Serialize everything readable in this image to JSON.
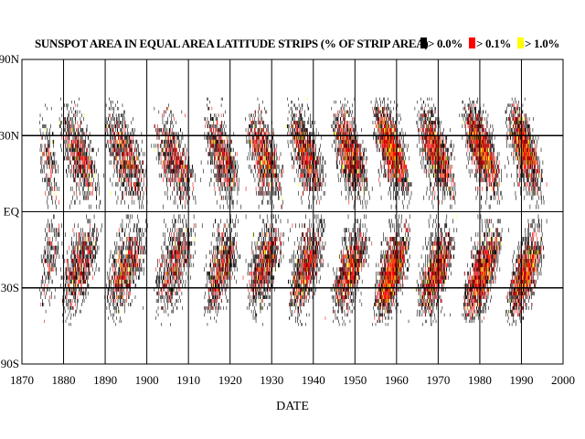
{
  "chart_data": {
    "type": "heatmap",
    "title": "SUNSPOT AREA IN EQUAL AREA LATITUDE STRIPS (% OF STRIP AREA)",
    "xlabel": "DATE",
    "ylabel": "",
    "xlim": [
      1870,
      2000
    ],
    "x_ticks": [
      "1870",
      "1880",
      "1890",
      "1900",
      "1910",
      "1920",
      "1930",
      "1940",
      "1950",
      "1960",
      "1970",
      "1980",
      "1990",
      "2000"
    ],
    "y_ticks": [
      "90N",
      "30N",
      "EQ",
      "30S",
      "90S"
    ],
    "y_tick_values": [
      90,
      30,
      0,
      -30,
      -90
    ],
    "y_scale": "sine of latitude (equal area)",
    "grid": "vertical lines each decade; horizontal lines at 30N, EQ, 30S",
    "legend_position": "top-right",
    "legend": [
      {
        "label": "> 0.0%",
        "color": "#000000"
      },
      {
        "label": "> 0.1%",
        "color": "#ff0000"
      },
      {
        "label": "> 1.0%",
        "color": "#ffff00"
      }
    ],
    "cycles": [
      {
        "start": 1874,
        "end": 1880,
        "max_lat": 28,
        "intensity": 0.35
      },
      {
        "start": 1878.8,
        "end": 1890.5,
        "max_lat": 33,
        "intensity": 0.6
      },
      {
        "start": 1889.5,
        "end": 1902,
        "max_lat": 33,
        "intensity": 0.6
      },
      {
        "start": 1901.5,
        "end": 1913.5,
        "max_lat": 30,
        "intensity": 0.55
      },
      {
        "start": 1913.5,
        "end": 1924,
        "max_lat": 33,
        "intensity": 0.65
      },
      {
        "start": 1923.5,
        "end": 1934.5,
        "max_lat": 32,
        "intensity": 0.7
      },
      {
        "start": 1933.5,
        "end": 1944.5,
        "max_lat": 35,
        "intensity": 0.75
      },
      {
        "start": 1944,
        "end": 1955,
        "max_lat": 35,
        "intensity": 0.8
      },
      {
        "start": 1954,
        "end": 1965,
        "max_lat": 38,
        "intensity": 1.0
      },
      {
        "start": 1964.5,
        "end": 1976,
        "max_lat": 36,
        "intensity": 0.8
      },
      {
        "start": 1975.5,
        "end": 1987,
        "max_lat": 38,
        "intensity": 0.9
      },
      {
        "start": 1986,
        "end": 1997,
        "max_lat": 38,
        "intensity": 0.9
      }
    ]
  }
}
